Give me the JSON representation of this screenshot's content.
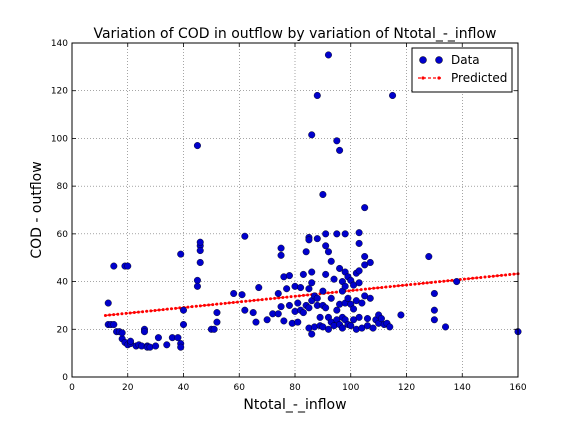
{
  "chart_data": {
    "type": "scatter",
    "title": "Variation of COD in outflow by variation of Ntotal_-_inflow",
    "xlabel": "Ntotal_-_inflow",
    "ylabel": "COD - outflow",
    "xlim": [
      0,
      160
    ],
    "ylim": [
      0,
      140
    ],
    "xticks": [
      "0",
      "20",
      "40",
      "60",
      "80",
      "100",
      "120",
      "140",
      "160"
    ],
    "yticks": [
      "0",
      "20",
      "40",
      "60",
      "80",
      "100",
      "120",
      "140"
    ],
    "grid": true,
    "legend_position": "top-right",
    "series": [
      {
        "name": "Data",
        "kind": "markers",
        "color": "#0000cc",
        "points": [
          [
            13,
            31
          ],
          [
            13,
            22
          ],
          [
            14,
            22
          ],
          [
            15,
            46.5
          ],
          [
            15,
            22
          ],
          [
            16,
            19
          ],
          [
            17,
            19
          ],
          [
            18,
            16
          ],
          [
            18,
            18.5
          ],
          [
            19,
            14.5
          ],
          [
            19,
            46.5
          ],
          [
            20,
            46.5
          ],
          [
            20,
            13.5
          ],
          [
            21,
            14
          ],
          [
            21,
            15
          ],
          [
            23,
            13
          ],
          [
            24,
            13.5
          ],
          [
            25,
            13
          ],
          [
            26,
            20
          ],
          [
            26,
            19
          ],
          [
            27,
            13
          ],
          [
            27,
            12.5
          ],
          [
            28,
            12.5
          ],
          [
            30,
            13
          ],
          [
            31,
            16.5
          ],
          [
            34,
            13.5
          ],
          [
            36,
            16.5
          ],
          [
            38,
            16.5
          ],
          [
            39,
            51.5
          ],
          [
            39,
            14
          ],
          [
            39,
            12.5
          ],
          [
            40,
            28
          ],
          [
            40,
            22
          ],
          [
            45,
            97
          ],
          [
            45,
            40.5
          ],
          [
            45,
            38
          ],
          [
            46,
            55
          ],
          [
            46,
            56.5
          ],
          [
            46,
            53
          ],
          [
            46,
            48
          ],
          [
            50,
            20
          ],
          [
            51,
            20
          ],
          [
            52,
            27
          ],
          [
            52,
            23
          ],
          [
            58,
            35
          ],
          [
            61,
            34.5
          ],
          [
            62,
            59
          ],
          [
            62,
            28
          ],
          [
            65,
            27
          ],
          [
            66,
            23
          ],
          [
            67,
            37.5
          ],
          [
            70,
            24
          ],
          [
            72,
            26.5
          ],
          [
            74,
            26.5
          ],
          [
            74,
            35
          ],
          [
            75,
            54
          ],
          [
            75,
            51
          ],
          [
            75,
            29.5
          ],
          [
            76,
            23.5
          ],
          [
            76,
            42
          ],
          [
            77,
            37
          ],
          [
            78,
            42.5
          ],
          [
            78,
            30
          ],
          [
            79,
            22.5
          ],
          [
            80,
            27.5
          ],
          [
            80,
            38
          ],
          [
            81,
            23
          ],
          [
            81,
            31
          ],
          [
            82,
            28
          ],
          [
            82,
            37.5
          ],
          [
            83,
            27
          ],
          [
            83,
            43
          ],
          [
            84,
            30
          ],
          [
            84,
            52.5
          ],
          [
            85,
            58.5
          ],
          [
            85,
            57.5
          ],
          [
            85,
            37
          ],
          [
            85,
            29
          ],
          [
            85,
            20.5
          ],
          [
            86,
            101.5
          ],
          [
            86,
            44
          ],
          [
            86,
            39.5
          ],
          [
            86,
            32
          ],
          [
            86,
            18
          ],
          [
            87,
            34
          ],
          [
            87,
            21
          ],
          [
            88,
            118
          ],
          [
            88,
            58
          ],
          [
            88,
            33
          ],
          [
            88,
            30
          ],
          [
            89,
            25
          ],
          [
            89,
            21.5
          ],
          [
            90,
            76.5
          ],
          [
            90,
            36
          ],
          [
            90,
            30
          ],
          [
            90,
            21
          ],
          [
            91,
            60
          ],
          [
            91,
            55
          ],
          [
            91,
            43
          ],
          [
            91,
            29
          ],
          [
            92,
            135
          ],
          [
            92,
            52.5
          ],
          [
            92,
            25
          ],
          [
            92,
            20
          ],
          [
            93,
            48.5
          ],
          [
            93,
            33
          ],
          [
            93,
            23
          ],
          [
            94,
            41
          ],
          [
            94,
            21.5
          ],
          [
            95,
            99
          ],
          [
            95,
            60
          ],
          [
            95,
            28
          ],
          [
            95,
            24
          ],
          [
            96,
            95
          ],
          [
            96,
            45.5
          ],
          [
            96,
            30.5
          ],
          [
            96,
            22
          ],
          [
            97,
            40
          ],
          [
            97,
            36
          ],
          [
            97,
            25
          ],
          [
            97,
            20.5
          ],
          [
            98,
            60
          ],
          [
            98,
            44
          ],
          [
            98,
            38
          ],
          [
            98,
            31
          ],
          [
            98,
            24
          ],
          [
            99,
            42
          ],
          [
            99,
            33
          ],
          [
            99,
            22
          ],
          [
            100,
            40.5
          ],
          [
            100,
            30.5
          ],
          [
            100,
            21.5
          ],
          [
            101,
            38.5
          ],
          [
            101,
            28.5
          ],
          [
            101,
            24
          ],
          [
            102,
            43.5
          ],
          [
            102,
            32
          ],
          [
            102,
            20
          ],
          [
            103,
            60.5
          ],
          [
            103,
            56
          ],
          [
            103,
            44.5
          ],
          [
            103,
            39.5
          ],
          [
            103,
            25
          ],
          [
            104,
            31
          ],
          [
            104,
            20.5
          ],
          [
            105,
            71
          ],
          [
            105,
            50.5
          ],
          [
            105,
            47
          ],
          [
            105,
            34
          ],
          [
            106,
            24.5
          ],
          [
            106,
            21.5
          ],
          [
            107,
            48
          ],
          [
            107,
            33
          ],
          [
            108,
            20.5
          ],
          [
            109,
            24
          ],
          [
            110,
            26
          ],
          [
            110,
            22.5
          ],
          [
            111,
            24.5
          ],
          [
            112,
            22
          ],
          [
            113,
            22.5
          ],
          [
            114,
            21
          ],
          [
            115,
            118
          ],
          [
            118,
            26
          ],
          [
            128,
            50.5
          ],
          [
            130,
            35
          ],
          [
            130,
            28
          ],
          [
            130,
            24
          ],
          [
            134,
            21
          ],
          [
            138,
            40
          ],
          [
            160,
            19
          ]
        ]
      },
      {
        "name": "Predicted",
        "kind": "line",
        "color": "#ff0000",
        "points": [
          [
            12,
            25.8
          ],
          [
            160,
            43.3
          ]
        ]
      }
    ]
  }
}
